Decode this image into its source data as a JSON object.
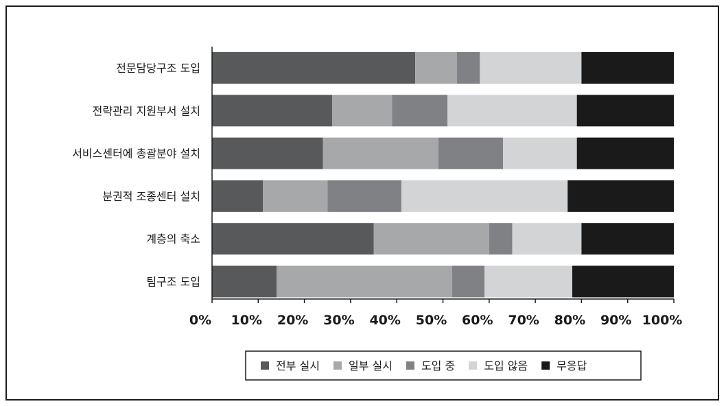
{
  "chart_data": {
    "type": "bar",
    "orientation": "horizontal",
    "stacked": true,
    "categories": [
      "전문담당구조 도입",
      "전략관리 지원부서 설치",
      "서비스센터에 총괄분야 설치",
      "분권적 조종센터 설치",
      "계층의 축소",
      "팀구조 도입"
    ],
    "series": [
      {
        "name": "전부 실시",
        "color": "#58595b",
        "values": [
          44,
          26,
          24,
          11,
          35,
          14
        ]
      },
      {
        "name": "일부 실시",
        "color": "#a7a8aa",
        "values": [
          9,
          13,
          25,
          14,
          25,
          38
        ]
      },
      {
        "name": "도입 중",
        "color": "#808184",
        "values": [
          5,
          12,
          14,
          16,
          5,
          7
        ]
      },
      {
        "name": "도입 않음",
        "color": "#d3d4d5",
        "values": [
          22,
          28,
          16,
          36,
          15,
          19
        ]
      },
      {
        "name": "무응답",
        "color": "#1a1a1a",
        "values": [
          20,
          21,
          21,
          23,
          20,
          22
        ]
      }
    ],
    "xlim": [
      0,
      100
    ],
    "xticks": [
      "0%",
      "10%",
      "20%",
      "30%",
      "40%",
      "50%",
      "60%",
      "70%",
      "80%",
      "90%",
      "100%"
    ],
    "title": "",
    "xlabel": "",
    "ylabel": "",
    "grid": false,
    "legend_position": "bottom",
    "legend_marker": "■"
  }
}
